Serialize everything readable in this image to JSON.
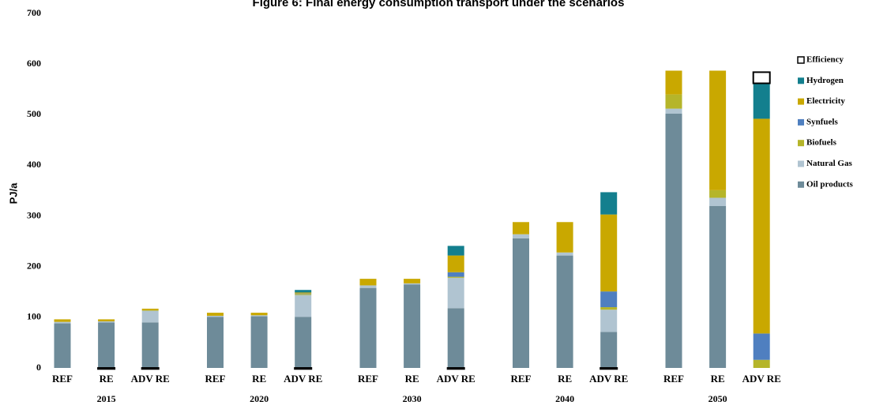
{
  "chart_data": {
    "type": "stacked-bar",
    "title": "Figure 6: Final energy consumption transport under the scenarios",
    "y_label": "PJ/a",
    "groups": [
      "2015",
      "2020",
      "2030",
      "2040",
      "2050"
    ],
    "categories": [
      "REF",
      "RE",
      "ADV RE",
      "REF",
      "RE",
      "ADV RE",
      "REF",
      "RE",
      "ADV RE",
      "REF",
      "RE",
      "ADV RE",
      "REF",
      "RE",
      "ADV RE"
    ],
    "ylim": [
      0,
      700
    ],
    "yticks": [
      0,
      100,
      200,
      300,
      400,
      500,
      600,
      700
    ],
    "series": [
      {
        "name": "Oil products",
        "color": "#6e8b99",
        "values": [
          88,
          90,
          90,
          101,
          102,
          101,
          158,
          165,
          118,
          256,
          222,
          71,
          502,
          320,
          0
        ]
      },
      {
        "name": "Natural Gas",
        "color": "#b0c4d1",
        "values": [
          3,
          2,
          23,
          2,
          2,
          43,
          5,
          2,
          60,
          8,
          6,
          44,
          10,
          16,
          0
        ]
      },
      {
        "name": "Biofuels",
        "color": "#b5b52a",
        "values": [
          0,
          0,
          1,
          0,
          0,
          2,
          0,
          0,
          2,
          0,
          0,
          5,
          28,
          15,
          16
        ]
      },
      {
        "name": "Synfuels",
        "color": "#4f7fc0",
        "values": [
          0,
          0,
          0,
          0,
          0,
          1,
          0,
          0,
          9,
          0,
          0,
          31,
          0,
          0,
          52
        ]
      },
      {
        "name": "Electricity",
        "color": "#c9a800",
        "values": [
          5,
          4,
          3,
          6,
          5,
          2,
          13,
          9,
          33,
          24,
          60,
          152,
          47,
          236,
          424
        ]
      },
      {
        "name": "Hydrogen",
        "color": "#137f8e",
        "values": [
          0,
          0,
          0,
          0,
          0,
          5,
          0,
          0,
          19,
          0,
          0,
          44,
          0,
          0,
          70
        ]
      },
      {
        "name": "Efficiency",
        "color": "#ffffff",
        "values": [
          0,
          -2,
          -2,
          0,
          0,
          -2,
          0,
          0,
          -2,
          0,
          0,
          -2,
          0,
          0,
          22
        ]
      }
    ]
  }
}
